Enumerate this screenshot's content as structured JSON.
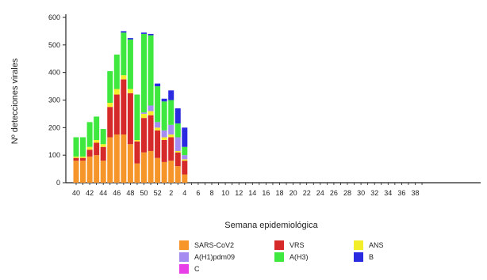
{
  "chart_data": {
    "type": "bar",
    "stacked": true,
    "xlabel": "Semana epidemiológica",
    "ylabel": "Nº detecciones virales",
    "ylim": [
      0,
      600
    ],
    "yticks": [
      0,
      100,
      200,
      300,
      400,
      500,
      600
    ],
    "categories": [
      "40",
      "41",
      "42",
      "43",
      "44",
      "45",
      "46",
      "47",
      "48",
      "49",
      "50",
      "51",
      "52",
      "1",
      "2",
      "3",
      "4",
      "5",
      "6",
      "7",
      "8",
      "9",
      "10",
      "11",
      "12",
      "13",
      "14",
      "15",
      "16",
      "17",
      "18",
      "19",
      "20",
      "21",
      "22",
      "23",
      "24",
      "25",
      "26",
      "27",
      "28",
      "29",
      "30",
      "31",
      "32",
      "33",
      "34",
      "35",
      "36",
      "37",
      "38",
      "39"
    ],
    "xtick_labels": [
      "40",
      "42",
      "44",
      "46",
      "48",
      "50",
      "52",
      "2",
      "4",
      "6",
      "8",
      "10",
      "12",
      "14",
      "16",
      "18",
      "20",
      "22",
      "24",
      "26",
      "28",
      "30",
      "32",
      "34",
      "36",
      "38"
    ],
    "series": [
      {
        "name": "SARS-CoV2",
        "color": "#f5952a",
        "values": [
          80,
          80,
          95,
          100,
          80,
          165,
          175,
          175,
          140,
          70,
          110,
          115,
          90,
          75,
          80,
          60,
          30,
          0,
          0,
          0,
          0,
          0,
          0,
          0,
          0,
          0,
          0,
          0,
          0,
          0,
          0,
          0,
          0,
          0,
          0,
          0,
          0,
          0,
          0,
          0,
          0,
          0,
          0,
          0,
          0,
          0,
          0,
          0,
          0,
          0,
          0,
          0
        ]
      },
      {
        "name": "VRS",
        "color": "#d62a2a",
        "values": [
          10,
          10,
          25,
          45,
          50,
          110,
          145,
          200,
          185,
          80,
          125,
          130,
          100,
          80,
          85,
          50,
          50,
          0,
          0,
          0,
          0,
          0,
          0,
          0,
          0,
          0,
          0,
          0,
          0,
          0,
          0,
          0,
          0,
          0,
          0,
          0,
          0,
          0,
          0,
          0,
          0,
          0,
          0,
          0,
          0,
          0,
          0,
          0,
          0,
          0,
          0,
          0
        ]
      },
      {
        "name": "ANS",
        "color": "#f2ef2a",
        "values": [
          5,
          5,
          10,
          10,
          10,
          15,
          20,
          15,
          15,
          5,
          15,
          15,
          10,
          10,
          10,
          5,
          5,
          0,
          0,
          0,
          0,
          0,
          0,
          0,
          0,
          0,
          0,
          0,
          0,
          0,
          0,
          0,
          0,
          0,
          0,
          0,
          0,
          0,
          0,
          0,
          0,
          0,
          0,
          0,
          0,
          0,
          0,
          0,
          0,
          0,
          0,
          0
        ]
      },
      {
        "name": "A(H1)pdm09",
        "color": "#a58cf0",
        "values": [
          0,
          0,
          0,
          0,
          0,
          0,
          0,
          0,
          0,
          0,
          5,
          20,
          20,
          25,
          35,
          50,
          15,
          0,
          0,
          0,
          0,
          0,
          0,
          0,
          0,
          0,
          0,
          0,
          0,
          0,
          0,
          0,
          0,
          0,
          0,
          0,
          0,
          0,
          0,
          0,
          0,
          0,
          0,
          0,
          0,
          0,
          0,
          0,
          0,
          0,
          0,
          0
        ]
      },
      {
        "name": "A(H3)",
        "color": "#3ee83e",
        "values": [
          70,
          70,
          90,
          85,
          55,
          115,
          125,
          155,
          180,
          165,
          285,
          255,
          130,
          105,
          90,
          50,
          30,
          0,
          0,
          0,
          0,
          0,
          0,
          0,
          0,
          0,
          0,
          0,
          0,
          0,
          0,
          0,
          0,
          0,
          0,
          0,
          0,
          0,
          0,
          0,
          0,
          0,
          0,
          0,
          0,
          0,
          0,
          0,
          0,
          0,
          0,
          0
        ]
      },
      {
        "name": "B",
        "color": "#2a2ae0",
        "values": [
          0,
          0,
          0,
          0,
          0,
          0,
          0,
          5,
          5,
          0,
          5,
          5,
          10,
          10,
          35,
          55,
          70,
          0,
          0,
          0,
          0,
          0,
          0,
          0,
          0,
          0,
          0,
          0,
          0,
          0,
          0,
          0,
          0,
          0,
          0,
          0,
          0,
          0,
          0,
          0,
          0,
          0,
          0,
          0,
          0,
          0,
          0,
          0,
          0,
          0,
          0,
          0
        ]
      },
      {
        "name": "C",
        "color": "#e83ee8",
        "values": [
          0,
          0,
          0,
          0,
          0,
          0,
          0,
          0,
          0,
          0,
          0,
          0,
          0,
          0,
          0,
          0,
          0,
          0,
          0,
          0,
          0,
          0,
          0,
          0,
          0,
          0,
          0,
          0,
          0,
          0,
          0,
          0,
          0,
          0,
          0,
          0,
          0,
          0,
          0,
          0,
          0,
          0,
          0,
          0,
          0,
          0,
          0,
          0,
          0,
          0,
          0,
          0
        ]
      }
    ],
    "stack_order": [
      "SARS-CoV2",
      "VRS",
      "ANS",
      "A(H1)pdm09",
      "A(H3)",
      "B",
      "C"
    ],
    "legend": {
      "placement": "bottom",
      "items": [
        {
          "label": "SARS-CoV2",
          "color": "#f5952a"
        },
        {
          "label": "VRS",
          "color": "#d62a2a"
        },
        {
          "label": "ANS",
          "color": "#f2ef2a"
        },
        {
          "label": "A(H1)pdm09",
          "color": "#a58cf0"
        },
        {
          "label": "A(H3)",
          "color": "#3ee83e"
        },
        {
          "label": "B",
          "color": "#2a2ae0"
        },
        {
          "label": "C",
          "color": "#e83ee8"
        }
      ]
    },
    "grid": false
  }
}
